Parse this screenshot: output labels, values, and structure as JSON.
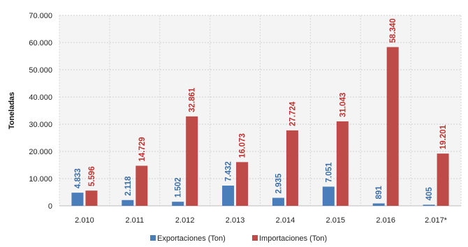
{
  "chart_data": {
    "type": "bar",
    "categories": [
      "2.010",
      "2.011",
      "2.012",
      "2.013",
      "2.014",
      "2.015",
      "2.016",
      "2.017*"
    ],
    "series": [
      {
        "name": "Exportaciones (Ton)",
        "color": "#4a7ebb",
        "values": [
          4833,
          2118,
          1502,
          7432,
          2935,
          7051,
          891,
          405
        ],
        "labels": [
          "4.833",
          "2.118",
          "1.502",
          "7.432",
          "2.935",
          "7.051",
          "891",
          "405"
        ],
        "label_color": "#3d6fa8"
      },
      {
        "name": "Importaciones (Ton)",
        "color": "#be4b48",
        "values": [
          5596,
          14729,
          32861,
          16073,
          27724,
          31043,
          58340,
          19201
        ],
        "labels": [
          "5.596",
          "14.729",
          "32.861",
          "16.073",
          "27.724",
          "31.043",
          "58.340",
          "19.201"
        ],
        "label_color": "#c0322f"
      }
    ],
    "ylabel": "Toneladas",
    "ylim": [
      0,
      70000
    ],
    "yticks": [
      0,
      10000,
      20000,
      30000,
      40000,
      50000,
      60000,
      70000
    ],
    "ytick_labels": [
      "0",
      "10.000",
      "20.000",
      "30.000",
      "40.000",
      "50.000",
      "60.000",
      "70.000"
    ],
    "grid": true,
    "legend_position": "bottom"
  }
}
